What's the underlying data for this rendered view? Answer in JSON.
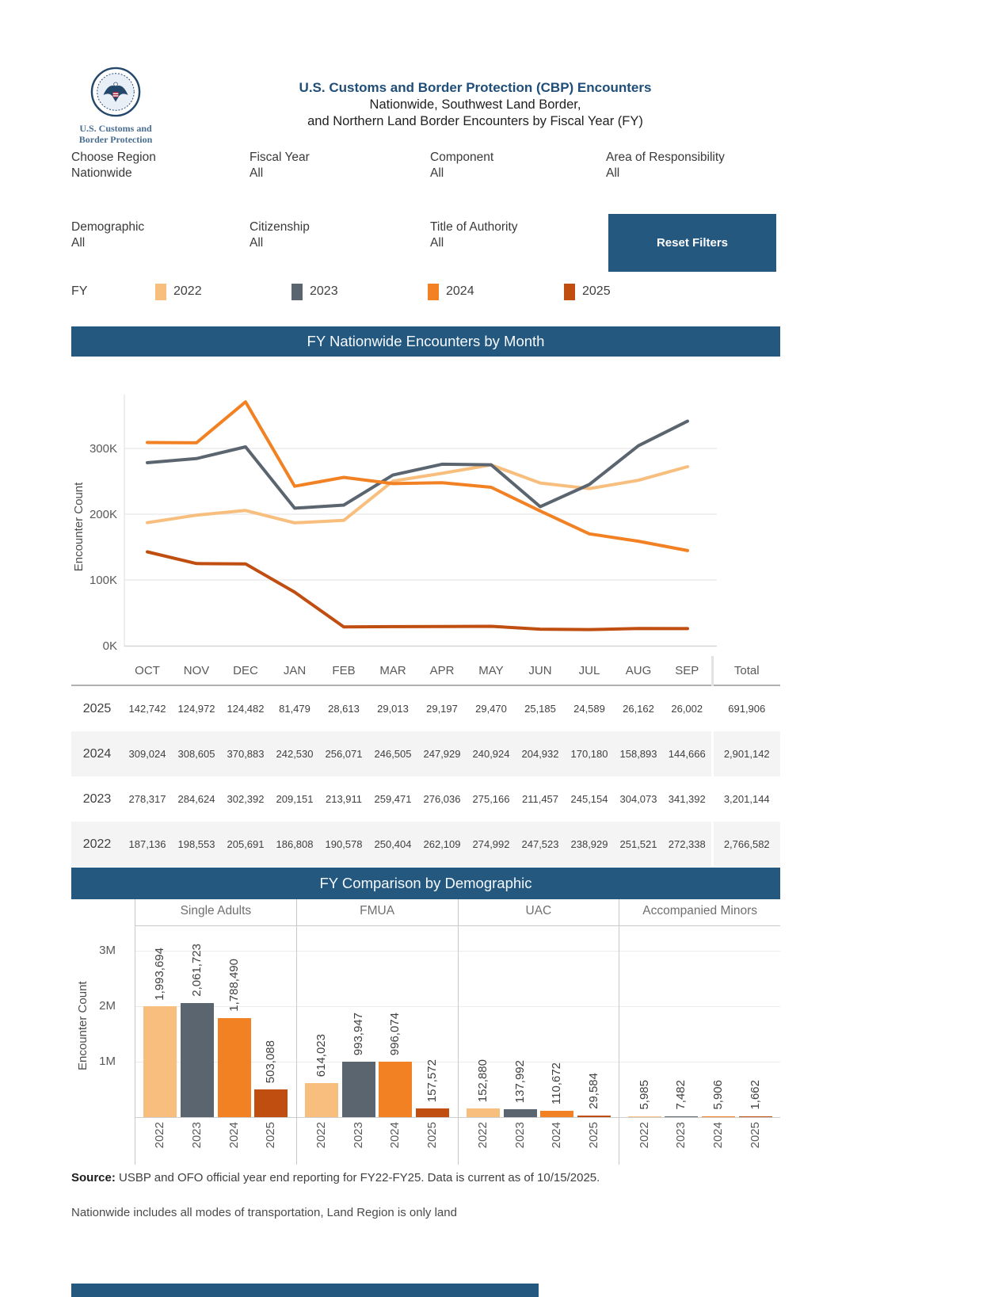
{
  "header": {
    "logo_line1": "U.S. Customs and",
    "logo_line2": "Border Protection",
    "title": "U.S. Customs and Border Protection (CBP) Encounters",
    "subtitle_line1": "Nationwide, Southwest Land Border,",
    "subtitle_line2": "and Northern Land Border Encounters by Fiscal Year (FY)"
  },
  "filters": [
    {
      "label": "Choose Region",
      "value": "Nationwide"
    },
    {
      "label": "Fiscal Year",
      "value": "All"
    },
    {
      "label": "Component",
      "value": "All"
    },
    {
      "label": "Area of Responsibility",
      "value": "All"
    },
    {
      "label": "Demographic",
      "value": "All"
    },
    {
      "label": "Citizenship",
      "value": "All"
    },
    {
      "label": "Title of Authority",
      "value": "All"
    }
  ],
  "reset_filters_label": "Reset Filters",
  "legend": {
    "label": "FY",
    "items": [
      {
        "year": "2022",
        "color": "#F8BE7D"
      },
      {
        "year": "2023",
        "color": "#5B6570"
      },
      {
        "year": "2024",
        "color": "#F28123"
      },
      {
        "year": "2025",
        "color": "#BF4E10"
      }
    ]
  },
  "colors": {
    "panel_blue": "#24587F",
    "title_blue": "#1F4E79"
  },
  "chart_data": [
    {
      "type": "line",
      "title": "FY Nationwide Encounters by Month",
      "x": [
        "OCT",
        "NOV",
        "DEC",
        "JAN",
        "FEB",
        "MAR",
        "APR",
        "MAY",
        "JUN",
        "JUL",
        "AUG",
        "SEP"
      ],
      "ylabel": "Encounter Count",
      "yticks": [
        "0K",
        "100K",
        "200K",
        "300K"
      ],
      "ylim": [
        0,
        390000
      ],
      "grid": true,
      "legend_position": "top",
      "series": [
        {
          "name": "2022",
          "color": "#F8BE7D",
          "values": [
            187136,
            198553,
            205691,
            186808,
            190578,
            250404,
            262109,
            274992,
            247523,
            238929,
            251521,
            272338
          ]
        },
        {
          "name": "2023",
          "color": "#5B6570",
          "values": [
            278317,
            284624,
            302392,
            209151,
            213911,
            259471,
            276036,
            275166,
            211457,
            245154,
            304073,
            341392
          ]
        },
        {
          "name": "2024",
          "color": "#F28123",
          "values": [
            309024,
            308605,
            370883,
            242530,
            256071,
            246505,
            247929,
            240924,
            204932,
            170180,
            158893,
            144666
          ]
        },
        {
          "name": "2025",
          "color": "#BF4E10",
          "values": [
            142742,
            124972,
            124482,
            81479,
            28613,
            29013,
            29197,
            29470,
            25185,
            24589,
            26162,
            26002
          ]
        }
      ]
    },
    {
      "type": "bar",
      "title": "FY Comparison by Demographic",
      "ylabel": "Encounter Count",
      "yticks": [
        "1M",
        "2M",
        "3M"
      ],
      "ylim": [
        0,
        3500000
      ],
      "grid": true,
      "groups": [
        "Single Adults",
        "FMUA",
        "UAC",
        "Accompanied Minors"
      ],
      "years": [
        "2022",
        "2023",
        "2024",
        "2025"
      ],
      "series": [
        {
          "group": "Single Adults",
          "values": [
            1993694,
            2061723,
            1788490,
            503088
          ],
          "labels": [
            "1,993,694",
            "2,061,723",
            "1,788,490",
            "503,088"
          ]
        },
        {
          "group": "FMUA",
          "values": [
            614023,
            993947,
            996074,
            157572
          ],
          "labels": [
            "614,023",
            "993,947",
            "996,074",
            "157,572"
          ]
        },
        {
          "group": "UAC",
          "values": [
            152880,
            137992,
            110672,
            29584
          ],
          "labels": [
            "152,880",
            "137,992",
            "110,672",
            "29,584"
          ]
        },
        {
          "group": "Accompanied Minors",
          "values": [
            5985,
            7482,
            5906,
            1662
          ],
          "labels": [
            "5,985",
            "7,482",
            "5,906",
            "1,662"
          ]
        }
      ]
    }
  ],
  "table": {
    "columns": [
      "OCT",
      "NOV",
      "DEC",
      "JAN",
      "FEB",
      "MAR",
      "APR",
      "MAY",
      "JUN",
      "JUL",
      "AUG",
      "SEP",
      "Total"
    ],
    "rows": [
      {
        "year": "2025",
        "values": [
          "142,742",
          "124,972",
          "124,482",
          "81,479",
          "28,613",
          "29,013",
          "29,197",
          "29,470",
          "25,185",
          "24,589",
          "26,162",
          "26,002"
        ],
        "total": "691,906"
      },
      {
        "year": "2024",
        "values": [
          "309,024",
          "308,605",
          "370,883",
          "242,530",
          "256,071",
          "246,505",
          "247,929",
          "240,924",
          "204,932",
          "170,180",
          "158,893",
          "144,666"
        ],
        "total": "2,901,142"
      },
      {
        "year": "2023",
        "values": [
          "278,317",
          "284,624",
          "302,392",
          "209,151",
          "213,911",
          "259,471",
          "276,036",
          "275,166",
          "211,457",
          "245,154",
          "304,073",
          "341,392"
        ],
        "total": "3,201,144"
      },
      {
        "year": "2022",
        "values": [
          "187,136",
          "198,553",
          "205,691",
          "186,808",
          "190,578",
          "250,404",
          "262,109",
          "274,992",
          "247,523",
          "238,929",
          "251,521",
          "272,338"
        ],
        "total": "2,766,582"
      }
    ]
  },
  "footer": {
    "source_label": "Source:",
    "source_text": " USBP and OFO official year end reporting for FY22-FY25. Data is current as of 10/15/2025.",
    "note": "Nationwide includes all modes of transportation, Land Region is only land"
  }
}
